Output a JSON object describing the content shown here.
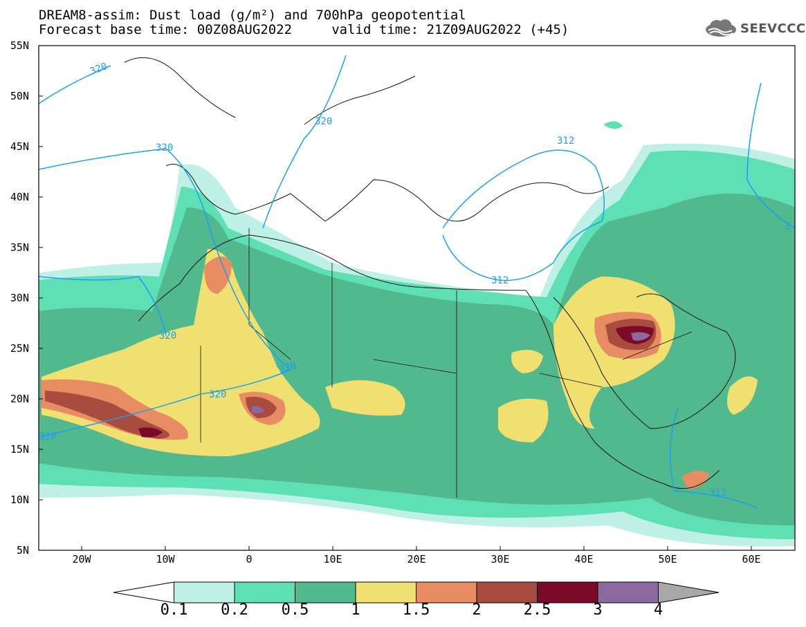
{
  "header": {
    "line1": "DREAM8-assim: Dust load (g/m²) and 700hPa geopotential",
    "line2": "Forecast base time: 00Z08AUG2022     valid time: 21Z09AUG2022 (+45)"
  },
  "logo": {
    "icon": "cloud-icon",
    "text": "SEEVCCC"
  },
  "axes": {
    "lat_labels": [
      "55N",
      "50N",
      "45N",
      "40N",
      "35N",
      "30N",
      "25N",
      "20N",
      "15N",
      "10N",
      "5N"
    ],
    "lon_labels": [
      "20W",
      "10W",
      "0",
      "10E",
      "20E",
      "30E",
      "40E",
      "50E",
      "60E"
    ]
  },
  "contours": {
    "labels": [
      "320",
      "320",
      "320",
      "320",
      "320",
      "320",
      "320",
      "312",
      "312",
      "312",
      "3"
    ]
  },
  "colorbar": {
    "labels": [
      "0.1",
      "0.2",
      "0.5",
      "1",
      "1.5",
      "2",
      "2.5",
      "3",
      "4"
    ],
    "colors": [
      "#ffffff",
      "#bff0e6",
      "#5ee0b4",
      "#52b88e",
      "#f0e070",
      "#e88c64",
      "#a84c40",
      "#7a0a28",
      "#8c6aa0",
      "#a8a8a8"
    ]
  }
}
